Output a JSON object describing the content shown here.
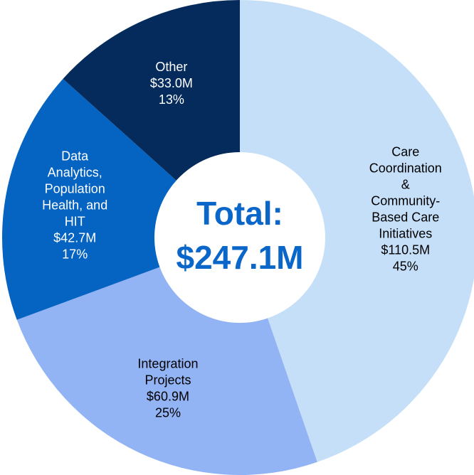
{
  "chart_data": {
    "type": "donut",
    "categories": [
      [
        "Care",
        "Coordination",
        "&",
        "Community-",
        "Based Care",
        "Initiatives"
      ],
      [
        "Integration",
        "Projects"
      ],
      [
        "Data",
        "Analytics,",
        "Population",
        "Health, and",
        "HIT"
      ],
      [
        "Other"
      ]
    ],
    "values": [
      110.5,
      60.9,
      42.7,
      33.0
    ],
    "value_labels": [
      "$110.5M",
      "$60.9M",
      "$42.7M",
      "$33.0M"
    ],
    "percents": [
      45,
      25,
      17,
      13
    ],
    "percent_labels": [
      "45%",
      "25%",
      "17%",
      "13%"
    ],
    "colors": [
      "#c5dff8",
      "#92b3f4",
      "#0563c1",
      "#042b5c"
    ],
    "label_colors": [
      "#000000",
      "#000000",
      "#ffffff",
      "#ffffff"
    ],
    "center_title": "Total:",
    "center_value": "$247.1M"
  }
}
